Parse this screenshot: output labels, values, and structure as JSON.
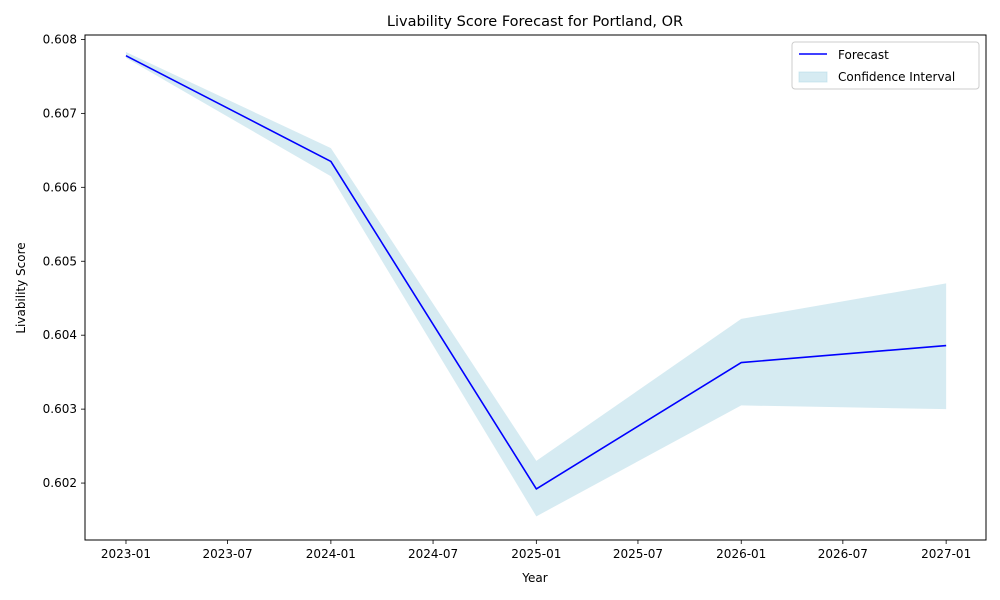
{
  "chart_data": {
    "type": "line",
    "title": "Livability Score Forecast for Portland, OR",
    "xlabel": "Year",
    "ylabel": "Livability Score",
    "x": [
      "2023-01-01",
      "2024-01-01",
      "2025-01-01",
      "2026-01-01",
      "2027-01-01"
    ],
    "series": [
      {
        "name": "Forecast",
        "color": "#0000ff",
        "values": [
          0.60778,
          0.60635,
          0.60192,
          0.60363,
          0.60386
        ]
      }
    ],
    "confidence_interval": {
      "name": "Confidence Interval",
      "color": "#add8e6",
      "lower": [
        0.60775,
        0.60615,
        0.60155,
        0.60305,
        0.603
      ],
      "upper": [
        0.60783,
        0.60653,
        0.6023,
        0.60422,
        0.6047
      ]
    },
    "xlim": [
      "2022-10-20",
      "2027-03-13"
    ],
    "ylim": [
      0.60123,
      0.60806
    ],
    "x_ticks": [
      "2023-01",
      "2023-07",
      "2024-01",
      "2024-07",
      "2025-01",
      "2025-07",
      "2026-01",
      "2026-07",
      "2027-01"
    ],
    "y_ticks": [
      "0.602",
      "0.603",
      "0.604",
      "0.605",
      "0.606",
      "0.607",
      "0.608"
    ],
    "legend": {
      "placement": "top-right",
      "entries": [
        "Forecast",
        "Confidence Interval"
      ]
    },
    "grid": false
  }
}
